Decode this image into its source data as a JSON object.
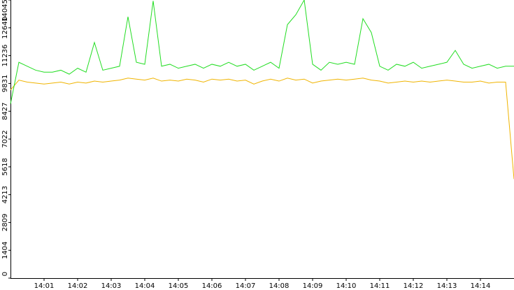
{
  "chart_data": {
    "type": "line",
    "x": [
      840,
      840.25,
      840.5,
      840.75,
      841,
      841.25,
      841.5,
      841.75,
      842,
      842.25,
      842.5,
      842.75,
      843,
      843.25,
      843.5,
      843.75,
      844,
      844.25,
      844.5,
      844.75,
      845,
      845.25,
      845.5,
      845.75,
      846,
      846.25,
      846.5,
      846.75,
      847,
      847.25,
      847.5,
      847.75,
      848,
      848.25,
      848.5,
      848.75,
      849,
      849.25,
      849.5,
      849.75,
      850,
      850.25,
      850.5,
      850.75,
      851,
      851.25,
      851.5,
      851.75,
      852,
      852.25,
      852.5,
      852.75,
      853,
      853.25,
      853.5,
      853.75,
      854,
      854.25,
      854.5,
      854.75,
      855
    ],
    "series": [
      {
        "color": "#f0b400",
        "values": [
          9500,
          10000,
          9900,
          9850,
          9800,
          9850,
          9900,
          9800,
          9900,
          9850,
          9950,
          9900,
          9950,
          10000,
          10100,
          10050,
          10000,
          10100,
          9950,
          10000,
          9950,
          10050,
          10000,
          9900,
          10050,
          10000,
          10050,
          9950,
          10000,
          9800,
          9950,
          10050,
          9950,
          10100,
          10000,
          10050,
          9850,
          9950,
          10000,
          10050,
          10000,
          10050,
          10100,
          10000,
          9950,
          9850,
          9900,
          9950,
          9900,
          9950,
          9900,
          9950,
          10000,
          9950,
          9900,
          9900,
          9950,
          9850,
          9900,
          9900,
          5000
        ]
      },
      {
        "color": "#22dd22",
        "values": [
          8800,
          10900,
          10700,
          10500,
          10400,
          10400,
          10500,
          10300,
          10600,
          10400,
          11900,
          10500,
          10600,
          10700,
          13200,
          10900,
          10800,
          14000,
          10700,
          10800,
          10600,
          10700,
          10800,
          10600,
          10800,
          10700,
          10900,
          10700,
          10800,
          10500,
          10700,
          10900,
          10600,
          12800,
          13300,
          14045,
          10800,
          10500,
          10900,
          10800,
          10900,
          10800,
          13100,
          12400,
          10700,
          10500,
          10800,
          10700,
          10900,
          10600,
          10700,
          10800,
          10900,
          11500,
          10800,
          10600,
          10700,
          10800,
          10600,
          10700,
          10700
        ]
      }
    ],
    "xlim": [
      840,
      855
    ],
    "xticks": [
      {
        "value": 841,
        "label": "14:01"
      },
      {
        "value": 842,
        "label": "14:02"
      },
      {
        "value": 843,
        "label": "14:03"
      },
      {
        "value": 844,
        "label": "14:04"
      },
      {
        "value": 845,
        "label": "14:05"
      },
      {
        "value": 846,
        "label": "14:06"
      },
      {
        "value": 847,
        "label": "14:07"
      },
      {
        "value": 848,
        "label": "14:08"
      },
      {
        "value": 849,
        "label": "14:09"
      },
      {
        "value": 850,
        "label": "14:10"
      },
      {
        "value": 851,
        "label": "14:11"
      },
      {
        "value": 852,
        "label": "14:12"
      },
      {
        "value": 853,
        "label": "14:13"
      },
      {
        "value": 854,
        "label": "14:14"
      }
    ],
    "ylim": [
      0,
      14045
    ],
    "yticks": [
      0,
      1404,
      2809,
      4213,
      5618,
      7022,
      8427,
      9831,
      11236,
      12640,
      14045
    ]
  }
}
